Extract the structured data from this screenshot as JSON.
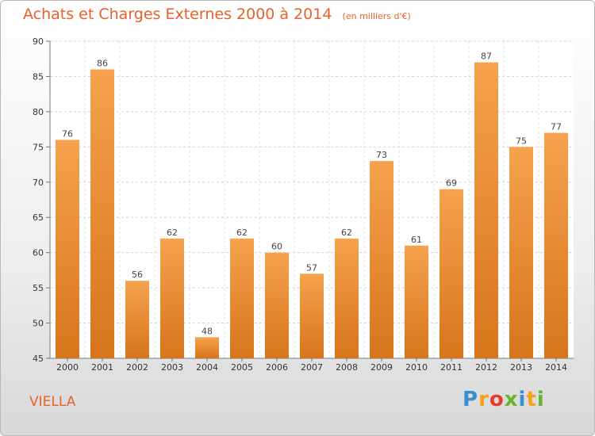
{
  "header": {
    "title": "Achats et Charges Externes 2000 à 2014",
    "subtitle": "(en milliers d'€)"
  },
  "footer": {
    "commune": "VIELLA",
    "logo_letters": [
      "P",
      "r",
      "o",
      "x",
      "i",
      "t",
      "i"
    ],
    "logo_colors": [
      "#3a8fd0",
      "#f5a11c",
      "#e23d2a",
      "#64b42d",
      "#3a8fd0",
      "#f5a11c",
      "#64b42d"
    ]
  },
  "colors": {
    "bar_light": "#f6a24e",
    "bar_dark": "#d6751c",
    "title": "#e8612a"
  },
  "chart_data": {
    "type": "bar",
    "title": "Achats et Charges Externes 2000 à 2014",
    "subtitle": "(en milliers d'€)",
    "categories": [
      "2000",
      "2001",
      "2002",
      "2003",
      "2004",
      "2005",
      "2006",
      "2007",
      "2008",
      "2009",
      "2010",
      "2011",
      "2012",
      "2013",
      "2014"
    ],
    "values": [
      76,
      86,
      56,
      62,
      48,
      62,
      60,
      57,
      62,
      73,
      61,
      69,
      87,
      75,
      77
    ],
    "ylim": [
      45,
      90
    ],
    "yticks": [
      45,
      50,
      55,
      60,
      65,
      70,
      75,
      80,
      85,
      90
    ],
    "grid": true,
    "xlabel": "",
    "ylabel": ""
  }
}
